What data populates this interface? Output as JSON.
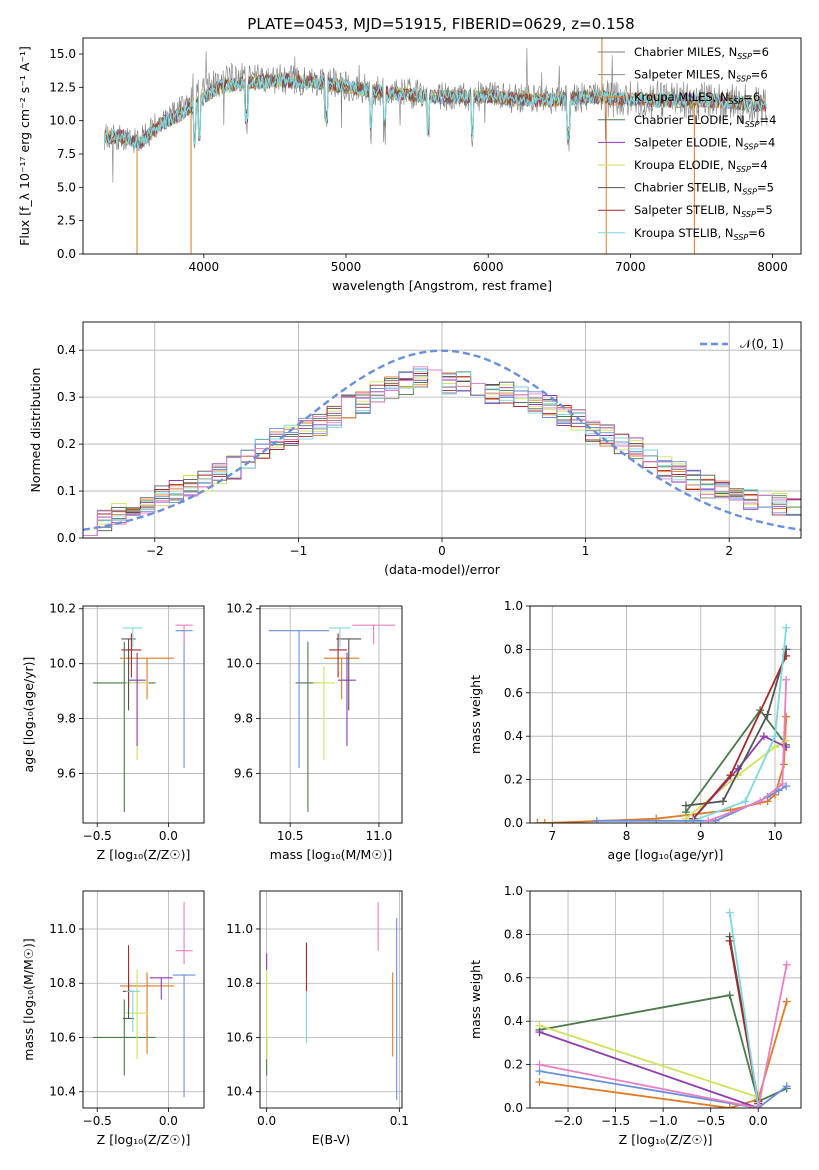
{
  "figure": {
    "title": "PLATE=0453, MJD=51915, FIBERID=0629, z=0.158"
  },
  "colors": {
    "Chabrier MILES": "#7f7f7f",
    "Salpeter MILES": "#8c8c8c",
    "Kroupa MILES": "#e07b26",
    "Chabrier ELODIE": "#4a7a4a",
    "Salpeter ELODIE": "#8e3bb0",
    "Kroupa ELODIE": "#cfe25a",
    "Chabrier STELIB": "#555555",
    "Salpeter STELIB": "#a52a2a",
    "Kroupa STELIB": "#7fd8e0",
    "blue": "#6a8fdc",
    "pink": "#e77fc2",
    "normal_curve": "#6a8fdc"
  },
  "chart_data": [
    {
      "id": "spectrum",
      "type": "line",
      "xlabel": "wavelength [Angstrom, rest frame]",
      "ylabel": "Flux [f_λ 10⁻¹⁷ erg cm⁻² s⁻¹ A⁻¹]",
      "xlim": [
        3150,
        8200
      ],
      "ylim": [
        0,
        16.2
      ],
      "xticks": [
        4000,
        5000,
        6000,
        7000,
        8000
      ],
      "yticks": [
        0.0,
        2.5,
        5.0,
        7.5,
        10.0,
        12.5,
        15.0
      ],
      "grid": false,
      "legend_position": "top-right",
      "legend": [
        {
          "label": "Chabrier MILES, N_SSP=6",
          "color": "#7f7f7f"
        },
        {
          "label": "Salpeter MILES, N_SSP=6",
          "color": "#8c8c8c"
        },
        {
          "label": "Kroupa MILES, N_SSP=6",
          "color": "#e07b26"
        },
        {
          "label": "Chabrier ELODIE, N_SSP=4",
          "color": "#4a7a4a"
        },
        {
          "label": "Salpeter ELODIE, N_SSP=4",
          "color": "#8e3bb0"
        },
        {
          "label": "Kroupa ELODIE, N_SSP=4",
          "color": "#cfe25a"
        },
        {
          "label": "Chabrier STELIB, N_SSP=5",
          "color": "#555555"
        },
        {
          "label": "Salpeter STELIB, N_SSP=5",
          "color": "#a52a2a"
        },
        {
          "label": "Kroupa STELIB, N_SSP=6",
          "color": "#7fd8e0"
        }
      ],
      "model_continuum": {
        "x": [
          3300,
          3450,
          3550,
          3700,
          3850,
          3950,
          4100,
          4300,
          4500,
          4800,
          5200,
          5600,
          6000,
          6400,
          6700,
          7000,
          7300,
          7600,
          7900
        ],
        "y": [
          8.8,
          8.8,
          8.3,
          9.8,
          10.5,
          11.3,
          12.5,
          12.8,
          13.0,
          12.9,
          12.2,
          11.8,
          11.8,
          11.5,
          11.8,
          11.6,
          11.5,
          11.5,
          11.2
        ]
      },
      "data_envelope": {
        "x": [
          3300,
          3550,
          3700,
          3850,
          4000,
          4200,
          4500,
          4800,
          5200,
          5600,
          6000,
          6400,
          6800,
          7000,
          7400,
          7800,
          7950
        ],
        "y": [
          8.8,
          8.5,
          10.0,
          11.0,
          12.5,
          13.2,
          13.1,
          13.0,
          12.3,
          11.9,
          11.8,
          11.6,
          11.8,
          11.6,
          11.5,
          11.3,
          11.0
        ]
      }
    },
    {
      "id": "residuals",
      "type": "bar",
      "xlabel": "(data-model)/error",
      "ylabel": "Normed distribution",
      "xlim": [
        -2.5,
        2.5
      ],
      "ylim": [
        0,
        0.46
      ],
      "xticks": [
        -2,
        -1,
        0,
        1,
        2
      ],
      "yticks": [
        0.0,
        0.1,
        0.2,
        0.3,
        0.4
      ],
      "grid": true,
      "legend_position": "top-right",
      "legend": [
        {
          "label": "𝒩(0, 1)",
          "color": "#6a8fdc",
          "style": "dashed"
        }
      ],
      "bin_width": 0.1,
      "bin_start": -2.5,
      "histogram_mean": [
        0.03,
        0.04,
        0.05,
        0.06,
        0.07,
        0.09,
        0.1,
        0.11,
        0.12,
        0.14,
        0.15,
        0.17,
        0.19,
        0.21,
        0.22,
        0.23,
        0.24,
        0.26,
        0.28,
        0.29,
        0.31,
        0.32,
        0.33,
        0.34,
        0.34,
        0.33,
        0.33,
        0.32,
        0.31,
        0.31,
        0.3,
        0.29,
        0.28,
        0.26,
        0.25,
        0.23,
        0.22,
        0.2,
        0.19,
        0.17,
        0.15,
        0.14,
        0.12,
        0.11,
        0.1,
        0.09,
        0.08,
        0.07,
        0.07,
        0.06
      ]
    },
    {
      "id": "z-age",
      "type": "scatter",
      "xlabel": "Z [log₁₀(Z/Z☉)]",
      "ylabel": "age [log₁₀(age/yr)]",
      "xlim": [
        -0.6,
        0.25
      ],
      "ylim": [
        9.42,
        10.21
      ],
      "xticks": [
        -0.5,
        0.0
      ],
      "yticks": [
        9.6,
        9.8,
        10.0,
        10.2
      ],
      "grid": true,
      "points": [
        {
          "color": "#4a7a4a",
          "x": -0.31,
          "y": 9.93,
          "xerr": 0.22,
          "yerr": [
            0.47,
            0.15
          ]
        },
        {
          "color": "#e07b26",
          "x": -0.15,
          "y": 10.02,
          "xerr": 0.19,
          "yerr": [
            0.15,
            0.0
          ]
        },
        {
          "color": "#cfe25a",
          "x": -0.22,
          "y": 9.93,
          "xerr": 0.08,
          "yerr": [
            0.28,
            0.06
          ]
        },
        {
          "color": "#8e3bb0",
          "x": -0.22,
          "y": 9.94,
          "xerr": 0.06,
          "yerr": [
            0.24,
            0.1
          ]
        },
        {
          "color": "#555555",
          "x": -0.28,
          "y": 10.09,
          "xerr": 0.05,
          "yerr": [
            0.26,
            0.0
          ]
        },
        {
          "color": "#a52a2a",
          "x": -0.26,
          "y": 10.05,
          "xerr": 0.07,
          "yerr": [
            0.1,
            0.06
          ]
        },
        {
          "color": "#7fd8e0",
          "x": -0.25,
          "y": 10.13,
          "xerr": 0.07,
          "yerr": [
            0.07,
            0.0
          ]
        },
        {
          "color": "#6a8fdc",
          "x": 0.11,
          "y": 10.12,
          "xerr": 0.06,
          "yerr": [
            0.5,
            0.0
          ]
        },
        {
          "color": "#e77fc2",
          "x": 0.11,
          "y": 10.14,
          "xerr": 0.06,
          "yerr": [
            0.07,
            0.0
          ]
        }
      ]
    },
    {
      "id": "mass-age",
      "type": "scatter",
      "xlabel": "mass [log₁₀(M/M☉)]",
      "ylabel": "",
      "xlim": [
        10.33,
        11.13
      ],
      "ylim": [
        9.42,
        10.21
      ],
      "xticks": [
        10.5,
        11.0
      ],
      "yticks": [
        9.6,
        9.8,
        10.0,
        10.2
      ],
      "grid": true,
      "points": [
        {
          "color": "#4a7a4a",
          "x": 10.6,
          "y": 9.93,
          "xerr": 0.07,
          "yerr": [
            0.47,
            0.15
          ]
        },
        {
          "color": "#e07b26",
          "x": 10.79,
          "y": 10.02,
          "xerr": 0.1,
          "yerr": [
            0.15,
            0.0
          ]
        },
        {
          "color": "#cfe25a",
          "x": 10.69,
          "y": 9.93,
          "xerr": 0.06,
          "yerr": [
            0.28,
            0.06
          ]
        },
        {
          "color": "#8e3bb0",
          "x": 10.82,
          "y": 9.94,
          "xerr": 0.05,
          "yerr": [
            0.24,
            0.1
          ]
        },
        {
          "color": "#555555",
          "x": 10.83,
          "y": 10.09,
          "xerr": 0.07,
          "yerr": [
            0.26,
            0.0
          ]
        },
        {
          "color": "#a52a2a",
          "x": 10.77,
          "y": 10.05,
          "xerr": 0.05,
          "yerr": [
            0.1,
            0.06
          ]
        },
        {
          "color": "#7fd8e0",
          "x": 10.78,
          "y": 10.13,
          "xerr": 0.06,
          "yerr": [
            0.07,
            0.0
          ]
        },
        {
          "color": "#6a8fdc",
          "x": 10.55,
          "y": 10.12,
          "xerr": 0.17,
          "yerr": [
            0.5,
            0.0
          ]
        },
        {
          "color": "#e77fc2",
          "x": 10.97,
          "y": 10.14,
          "xerr": 0.12,
          "yerr": [
            0.07,
            0.0
          ]
        }
      ]
    },
    {
      "id": "age-weight",
      "type": "line",
      "xlabel": "age [log₁₀(age/yr)]",
      "ylabel": "mass weight",
      "xlim": [
        6.7,
        10.35
      ],
      "ylim": [
        0,
        1.0
      ],
      "xticks": [
        7,
        8,
        9,
        10
      ],
      "yticks": [
        0.0,
        0.2,
        0.4,
        0.6,
        0.8,
        1.0
      ],
      "grid": true,
      "series": [
        {
          "color": "#e07b26",
          "x": [
            6.8,
            6.9,
            8.4,
            9.4,
            9.9,
            10.0,
            10.12,
            10.15
          ],
          "y": [
            0.0,
            0.0,
            0.02,
            0.06,
            0.1,
            0.13,
            0.27,
            0.49
          ]
        },
        {
          "color": "#4a7a4a",
          "x": [
            8.8,
            9.8,
            10.15
          ],
          "y": [
            0.05,
            0.52,
            0.36
          ]
        },
        {
          "color": "#cfe25a",
          "x": [
            8.8,
            9.5,
            10.0,
            10.15
          ],
          "y": [
            0.02,
            0.22,
            0.35,
            0.38
          ]
        },
        {
          "color": "#8e3bb0",
          "x": [
            8.9,
            9.5,
            9.85,
            10.15
          ],
          "y": [
            0.02,
            0.25,
            0.4,
            0.35
          ]
        },
        {
          "color": "#555555",
          "x": [
            8.8,
            9.3,
            9.9,
            10.15
          ],
          "y": [
            0.08,
            0.1,
            0.5,
            0.8
          ]
        },
        {
          "color": "#a52a2a",
          "x": [
            8.9,
            9.4,
            10.15
          ],
          "y": [
            0.02,
            0.22,
            0.77
          ]
        },
        {
          "color": "#7fd8e0",
          "x": [
            8.9,
            9.6,
            10.0,
            10.15
          ],
          "y": [
            0.01,
            0.1,
            0.4,
            0.9
          ]
        },
        {
          "color": "#6a8fdc",
          "x": [
            7.6,
            9.2,
            9.9,
            10.05,
            10.15
          ],
          "y": [
            0.01,
            0.01,
            0.12,
            0.15,
            0.17
          ]
        },
        {
          "color": "#e77fc2",
          "x": [
            9.1,
            9.8,
            10.1,
            10.15
          ],
          "y": [
            0.01,
            0.1,
            0.18,
            0.66
          ]
        }
      ]
    },
    {
      "id": "z-mass",
      "type": "scatter",
      "xlabel": "Z [log₁₀(Z/Z☉)]",
      "ylabel": "mass [log₁₀(M/M☉)]",
      "xlim": [
        -0.6,
        0.25
      ],
      "ylim": [
        10.34,
        11.14
      ],
      "xticks": [
        -0.5,
        0.0
      ],
      "yticks": [
        10.4,
        10.6,
        10.8,
        11.0
      ],
      "grid": true,
      "points": [
        {
          "color": "#4a7a4a",
          "x": -0.31,
          "y": 10.6,
          "xerr": 0.22,
          "yerr": [
            0.14,
            0.14
          ]
        },
        {
          "color": "#e07b26",
          "x": -0.15,
          "y": 10.79,
          "xerr": 0.19,
          "yerr": [
            0.25,
            0.05
          ]
        },
        {
          "color": "#cfe25a",
          "x": -0.22,
          "y": 10.69,
          "xerr": 0.08,
          "yerr": [
            0.17,
            0.16
          ]
        },
        {
          "color": "#8e3bb0",
          "x": -0.05,
          "y": 10.82,
          "xerr": 0.08,
          "yerr": [
            0.08,
            0.0
          ]
        },
        {
          "color": "#555555",
          "x": -0.28,
          "y": 10.67,
          "xerr": 0.04,
          "yerr": [
            0.0,
            0.16
          ]
        },
        {
          "color": "#a52a2a",
          "x": -0.28,
          "y": 10.77,
          "xerr": 0.04,
          "yerr": [
            0.06,
            0.17
          ]
        },
        {
          "color": "#7fd8e0",
          "x": -0.25,
          "y": 10.77,
          "xerr": 0.05,
          "yerr": [
            0.15,
            0.0
          ]
        },
        {
          "color": "#6a8fdc",
          "x": 0.11,
          "y": 10.83,
          "xerr": 0.08,
          "yerr": [
            0.45,
            0.0
          ]
        },
        {
          "color": "#e77fc2",
          "x": 0.11,
          "y": 10.92,
          "xerr": 0.06,
          "yerr": [
            0.05,
            0.18
          ]
        }
      ]
    },
    {
      "id": "ebv-mass",
      "type": "scatter",
      "xlabel": "E(B-V)",
      "ylabel": "",
      "xlim": [
        -0.005,
        0.102
      ],
      "ylim": [
        10.34,
        11.14
      ],
      "xticks": [
        0.0,
        0.1
      ],
      "yticks": [
        10.4,
        10.6,
        10.8,
        11.0
      ],
      "grid": true,
      "points": [
        {
          "color": "#4a7a4a",
          "x": 0.0,
          "y": 10.6,
          "yerr": [
            0.14,
            0.0
          ]
        },
        {
          "color": "#cfe25a",
          "x": 0.0,
          "y": 10.69,
          "yerr": [
            0.17,
            0.16
          ]
        },
        {
          "color": "#8e3bb0",
          "x": 0.0,
          "y": 10.85,
          "yerr": [
            0.0,
            0.06
          ]
        },
        {
          "color": "#a52a2a",
          "x": 0.03,
          "y": 10.77,
          "yerr": [
            0.0,
            0.18
          ]
        },
        {
          "color": "#7fd8e0",
          "x": 0.03,
          "y": 10.77,
          "yerr": [
            0.19,
            0.0
          ]
        },
        {
          "color": "#e77fc2",
          "x": 0.084,
          "y": 10.92,
          "yerr": [
            0.0,
            0.18
          ]
        },
        {
          "color": "#e07b26",
          "x": 0.095,
          "y": 10.7,
          "yerr": [
            0.17,
            0.14
          ]
        },
        {
          "color": "#6a8fdc",
          "x": 0.098,
          "y": 10.7,
          "yerr": [
            0.33,
            0.34
          ]
        }
      ]
    },
    {
      "id": "z-weight",
      "type": "line",
      "xlabel": "Z [log₁₀(Z/Z☉)]",
      "ylabel": "mass weight",
      "xlim": [
        -2.4,
        0.45
      ],
      "ylim": [
        0,
        1.0
      ],
      "xticks": [
        -2.0,
        -1.5,
        -1.0,
        -0.5,
        0.0
      ],
      "yticks": [
        0.0,
        0.2,
        0.4,
        0.6,
        0.8,
        1.0
      ],
      "grid": true,
      "series": [
        {
          "color": "#e07b26",
          "x": [
            -2.3,
            -0.3,
            0.0,
            0.3
          ],
          "y": [
            0.12,
            0.0,
            0.04,
            0.49
          ]
        },
        {
          "color": "#4a7a4a",
          "x": [
            -2.3,
            -0.3,
            0.0,
            0.3
          ],
          "y": [
            0.36,
            0.52,
            0.03,
            0.09
          ]
        },
        {
          "color": "#cfe25a",
          "x": [
            -2.3,
            0.0
          ],
          "y": [
            0.38,
            0.05
          ]
        },
        {
          "color": "#8e3bb0",
          "x": [
            -2.3,
            0.0
          ],
          "y": [
            0.35,
            0.0
          ]
        },
        {
          "color": "#555555",
          "x": [
            -0.3,
            0.0
          ],
          "y": [
            0.79,
            0.03
          ]
        },
        {
          "color": "#a52a2a",
          "x": [
            -0.3,
            0.0
          ],
          "y": [
            0.77,
            0.02
          ]
        },
        {
          "color": "#7fd8e0",
          "x": [
            -0.3,
            0.0
          ],
          "y": [
            0.9,
            0.01
          ]
        },
        {
          "color": "#6a8fdc",
          "x": [
            -2.3,
            0.0,
            0.3
          ],
          "y": [
            0.17,
            0.0,
            0.1
          ]
        },
        {
          "color": "#e77fc2",
          "x": [
            -2.3,
            0.0,
            0.3
          ],
          "y": [
            0.2,
            0.0,
            0.66
          ]
        }
      ]
    }
  ]
}
